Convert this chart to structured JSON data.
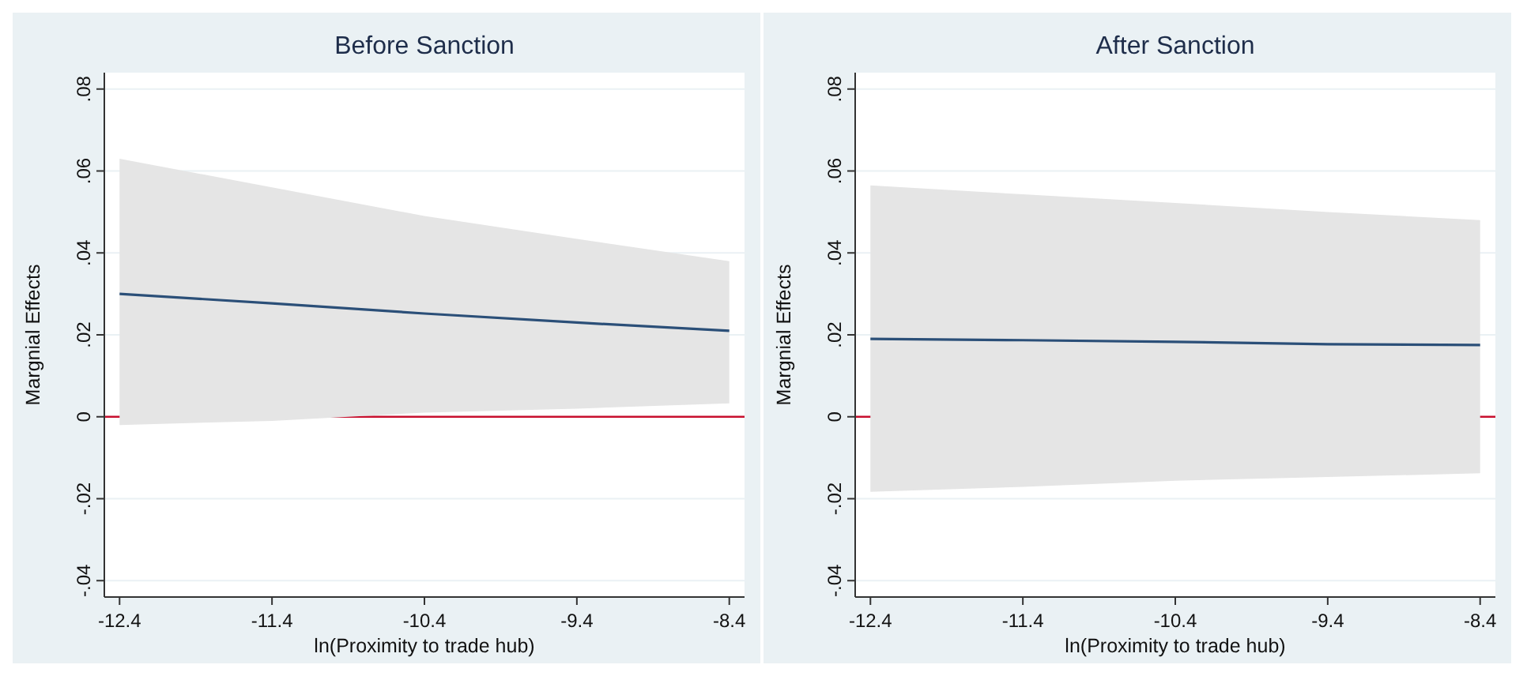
{
  "chart_data": [
    {
      "type": "line",
      "title": "Before Sanction",
      "xlabel": "ln(Proximity to trade hub)",
      "ylabel": "Margnial Effects",
      "xlim": [
        -12.5,
        -8.3
      ],
      "xticks": [
        -12.4,
        -11.4,
        -10.4,
        -9.4,
        -8.4
      ],
      "ylim": [
        -0.044,
        0.084
      ],
      "yticks": [
        {
          "value": -0.04,
          "label": "-.04"
        },
        {
          "value": -0.02,
          "label": "-.02"
        },
        0,
        {
          "value": 0.02,
          "label": ".02"
        },
        {
          "value": 0.04,
          "label": ".04"
        },
        {
          "value": 0.06,
          "label": ".06"
        },
        {
          "value": 0.08,
          "label": ".08"
        }
      ],
      "grid": "y",
      "marker": "none",
      "line_style": "solid",
      "series": [
        {
          "color": "#2b4f78",
          "x": [
            -12.4,
            -11.4,
            -10.4,
            -9.4,
            -8.4
          ],
          "values": [
            0.03,
            0.0277,
            0.0252,
            0.023,
            0.021
          ],
          "lower": [
            -0.002,
            -0.001,
            0.001,
            0.002,
            0.0033
          ],
          "upper": [
            0.063,
            0.056,
            0.049,
            0.0434,
            0.038
          ]
        }
      ],
      "ref_lines": [
        {
          "axis": "y",
          "value": 0,
          "color": "#c8102e"
        }
      ]
    },
    {
      "type": "line",
      "title": "After Sanction",
      "xlabel": "ln(Proximity to trade hub)",
      "ylabel": "Margnial Effects",
      "xlim": [
        -12.5,
        -8.3
      ],
      "xticks": [
        -12.4,
        -11.4,
        -10.4,
        -9.4,
        -8.4
      ],
      "ylim": [
        -0.044,
        0.084
      ],
      "yticks": [
        {
          "value": -0.04,
          "label": "-.04"
        },
        {
          "value": -0.02,
          "label": "-.02"
        },
        0,
        {
          "value": 0.02,
          "label": ".02"
        },
        {
          "value": 0.04,
          "label": ".04"
        },
        {
          "value": 0.06,
          "label": ".06"
        },
        {
          "value": 0.08,
          "label": ".08"
        }
      ],
      "grid": "y",
      "marker": "none",
      "line_style": "solid",
      "series": [
        {
          "color": "#2b4f78",
          "x": [
            -12.4,
            -11.4,
            -10.4,
            -9.4,
            -8.4
          ],
          "values": [
            0.019,
            0.0187,
            0.0183,
            0.0177,
            0.0175
          ],
          "lower": [
            -0.0183,
            -0.0171,
            -0.0156,
            -0.0147,
            -0.0138
          ],
          "upper": [
            0.0565,
            0.0543,
            0.0522,
            0.05,
            0.048
          ]
        }
      ],
      "ref_lines": [
        {
          "axis": "y",
          "value": 0,
          "color": "#c8102e"
        }
      ]
    }
  ]
}
